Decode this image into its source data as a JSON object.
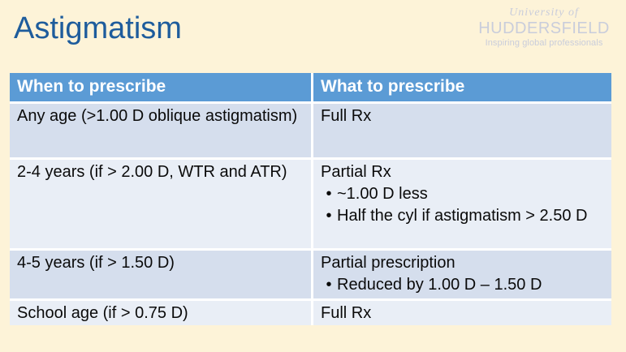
{
  "slide": {
    "title": "Astigmatism",
    "background_color": "#FDF3D8",
    "title_color": "#1E5C9C"
  },
  "logo": {
    "university_of": "University of",
    "name": "HUDDERSFIELD",
    "tagline": "Inspiring global professionals",
    "color": "#C9CDDB"
  },
  "table": {
    "header_bg_color": "#5B9BD5",
    "band_a_color": "#D5DEED",
    "band_b_color": "#E9EEF6",
    "headers": [
      "When to prescribe",
      "What to prescribe"
    ],
    "rows": [
      {
        "when": "Any age (>1.00 D oblique astigmatism)",
        "what": "Full Rx",
        "bullets": []
      },
      {
        "when": "2-4 years (if > 2.00 D, WTR and ATR)",
        "what": "Partial Rx",
        "bullets": [
          "~1.00 D less",
          "Half the cyl if astigmatism > 2.50 D"
        ]
      },
      {
        "when": "4-5 years (if > 1.50 D)",
        "what": "Partial prescription",
        "bullets": [
          "Reduced by 1.00 D – 1.50 D"
        ]
      },
      {
        "when": "School age (if > 0.75 D)",
        "what": "Full Rx",
        "bullets": []
      }
    ]
  }
}
